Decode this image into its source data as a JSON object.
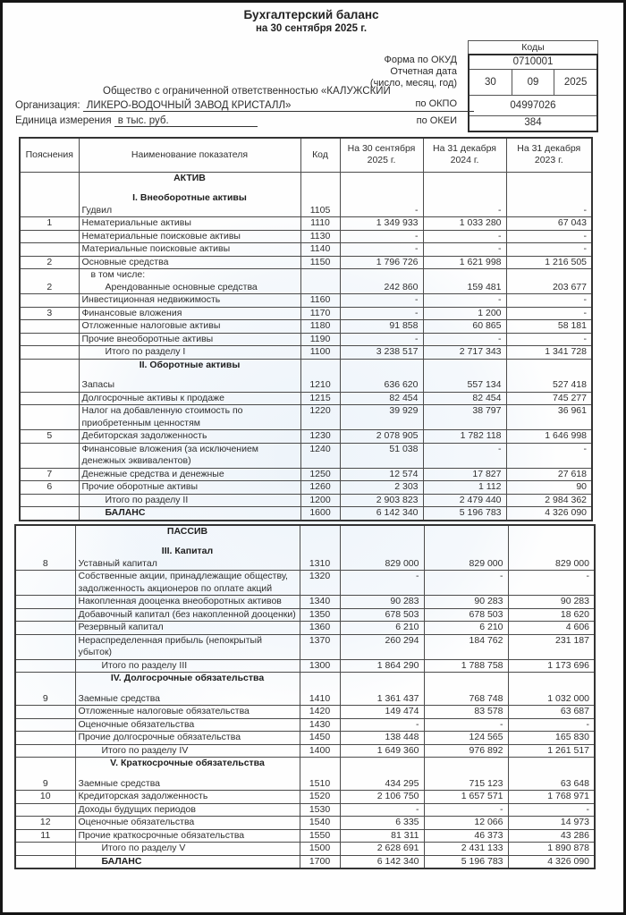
{
  "document": {
    "title": "Бухгалтерский баланс",
    "subtitle": "на 30 сентября 2025 г.",
    "organization": {
      "label": "Организация:",
      "name_line1": "Общество с ограниченной ответственностью «КАЛУЖСКИИ",
      "name_line2": "ЛИКЕРО-ВОДОЧНЫЙ ЗАВОД КРИСТАЛЛ»",
      "unit_label": "Единица измерения",
      "unit_value": "в тыс. руб."
    },
    "codes_box": {
      "header": "Коды",
      "okud_label": "Форма по ОКУД",
      "okud_value": "0710001",
      "date_label_line1": "Отчетная дата",
      "date_label_line2": "(число, месяц, год)",
      "date_day": "30",
      "date_month": "09",
      "date_year": "2025",
      "okpo_label": "по ОКПО",
      "okpo_value": "04997026",
      "okei_label": "по ОКЕИ",
      "okei_value": "384"
    }
  },
  "table_headers": [
    "Пояснения",
    "Наименование показателя",
    "Код",
    "На 30 сентября 2025 г.",
    "На 31 декабря 2024 г.",
    "На 31 декабря 2023 г."
  ],
  "assets_table": {
    "rows": [
      {
        "sections": [
          "АКТИВ",
          "",
          "I. Внеоборотные активы"
        ],
        "note": "",
        "name": "Гудвил",
        "code": "1105",
        "v1": "-",
        "v2": "-",
        "v3": "-"
      },
      {
        "note": "1",
        "name": "Нематериальные активы",
        "code": "1110",
        "v1": "1 349 933",
        "v2": "1 033 280",
        "v3": "67 043"
      },
      {
        "note": "",
        "name": "Нематериальные поисковые активы",
        "code": "1130",
        "v1": "-",
        "v2": "-",
        "v3": "-"
      },
      {
        "note": "",
        "name": "Материальные поисковые активы",
        "code": "1140",
        "v1": "-",
        "v2": "-",
        "v3": "-"
      },
      {
        "note": "2",
        "name": "Основные средства",
        "code": "1150",
        "v1": "1 796 726",
        "v2": "1 621 998",
        "v3": "1 216 505"
      },
      {
        "pre": "в том числе:",
        "note": "2",
        "name": "Арендованные основные средства",
        "code": "",
        "v1": "242 860",
        "v2": "159 481",
        "v3": "203 677",
        "indent": 1
      },
      {
        "note": "",
        "name": "Инвестиционная недвижимость",
        "code": "1160",
        "v1": "-",
        "v2": "-",
        "v3": "-"
      },
      {
        "note": "3",
        "name": "Финансовые вложения",
        "code": "1170",
        "v1": "-",
        "v2": "1 200",
        "v3": "-"
      },
      {
        "note": "",
        "name": "Отложенные налоговые активы",
        "code": "1180",
        "v1": "91 858",
        "v2": "60 865",
        "v3": "58 181"
      },
      {
        "note": "",
        "name": "Прочие внеоборотные активы",
        "code": "1190",
        "v1": "-",
        "v2": "-",
        "v3": "-"
      },
      {
        "note": "",
        "name": "Итого по разделу I",
        "code": "1100",
        "v1": "3 238 517",
        "v2": "2 717 343",
        "v3": "1 341 728",
        "indent": 1
      },
      {
        "sections": [
          "II. Оборотные активы",
          ""
        ],
        "note": "",
        "name": "Запасы",
        "code": "1210",
        "v1": "636 620",
        "v2": "557 134",
        "v3": "527 418"
      },
      {
        "note": "",
        "name": "Долгосрочные активы к продаже",
        "code": "1215",
        "v1": "82 454",
        "v2": "82 454",
        "v3": "745 277"
      },
      {
        "note": "",
        "name": "Налог на добавленную стоимость по приобретенным ценностям",
        "code": "1220",
        "v1": "39 929",
        "v2": "38 797",
        "v3": "36 961"
      },
      {
        "note": "5",
        "name": "Дебиторская задолженность",
        "code": "1230",
        "v1": "2 078 905",
        "v2": "1 782 118",
        "v3": "1 646 998"
      },
      {
        "note": "",
        "name": "Финансовые вложения (за исключением денежных эквивалентов)",
        "code": "1240",
        "v1": "51 038",
        "v2": "-",
        "v3": "-"
      },
      {
        "note": "7",
        "name": "Денежные средства и денежные",
        "code": "1250",
        "v1": "12 574",
        "v2": "17 827",
        "v3": "27 618"
      },
      {
        "note": "6",
        "name": "Прочие оборотные активы",
        "code": "1260",
        "v1": "2 303",
        "v2": "1 112",
        "v3": "90"
      },
      {
        "note": "",
        "name": "Итого по разделу II",
        "code": "1200",
        "v1": "2 903 823",
        "v2": "2 479 440",
        "v3": "2 984 362",
        "indent": 1
      },
      {
        "note": "",
        "name": "БАЛАНС",
        "code": "1600",
        "v1": "6 142 340",
        "v2": "5 196 783",
        "v3": "4 326 090",
        "bold": 1,
        "indent": 1
      }
    ]
  },
  "liabilities_table": {
    "rows": [
      {
        "sections": [
          "ПАССИВ",
          "",
          "III. Капитал"
        ],
        "note": "8",
        "name": "Уставный капитал",
        "code": "1310",
        "v1": "829 000",
        "v2": "829 000",
        "v3": "829 000"
      },
      {
        "note": "",
        "name": "Собственные акции, принадлежащие обществу, задолженность акционеров по оплате акций",
        "code": "1320",
        "v1": "-",
        "v2": "-",
        "v3": "-"
      },
      {
        "note": "",
        "name": "Накопленная дооценка внеоборотных активов",
        "code": "1340",
        "v1": "90 283",
        "v2": "90 283",
        "v3": "90 283"
      },
      {
        "note": "",
        "name": "Добавочный капитал (без накопленной дооценки)",
        "code": "1350",
        "v1": "678 503",
        "v2": "678 503",
        "v3": "18 620"
      },
      {
        "note": "",
        "name": "Резервный капитал",
        "code": "1360",
        "v1": "6 210",
        "v2": "6 210",
        "v3": "4 606"
      },
      {
        "note": "",
        "name": "Нераспределенная прибыль (непокрытый убыток)",
        "code": "1370",
        "v1": "260 294",
        "v2": "184 762",
        "v3": "231 187"
      },
      {
        "note": "",
        "name": "Итого по разделу III",
        "code": "1300",
        "v1": "1 864 290",
        "v2": "1 788 758",
        "v3": "1 173 696",
        "indent": 1
      },
      {
        "sections": [
          "IV. Долгосрочные обязательства",
          ""
        ],
        "note": "9",
        "name": "Заемные средства",
        "code": "1410",
        "v1": "1 361 437",
        "v2": "768 748",
        "v3": "1 032 000"
      },
      {
        "note": "",
        "name": "Отложенные налоговые обязательства",
        "code": "1420",
        "v1": "149 474",
        "v2": "83 578",
        "v3": "63 687"
      },
      {
        "note": "",
        "name": "Оценочные обязательства",
        "code": "1430",
        "v1": "-",
        "v2": "-",
        "v3": "-"
      },
      {
        "note": "",
        "name": "Прочие долгосрочные обязательства",
        "code": "1450",
        "v1": "138 448",
        "v2": "124 565",
        "v3": "165 830"
      },
      {
        "note": "",
        "name": "Итого по разделу IV",
        "code": "1400",
        "v1": "1 649 360",
        "v2": "976 892",
        "v3": "1 261 517",
        "indent": 1
      },
      {
        "sections": [
          "V. Краткосрочные обязательства",
          ""
        ],
        "note": "9",
        "name": "Заемные средства",
        "code": "1510",
        "v1": "434 295",
        "v2": "715 123",
        "v3": "63 648"
      },
      {
        "note": "10",
        "name": "Кредиторская задолженность",
        "code": "1520",
        "v1": "2 106 750",
        "v2": "1 657 571",
        "v3": "1 768 971"
      },
      {
        "note": "",
        "name": "Доходы будущих периодов",
        "code": "1530",
        "v1": "-",
        "v2": "-",
        "v3": "-"
      },
      {
        "note": "12",
        "name": "Оценочные обязательства",
        "code": "1540",
        "v1": "6 335",
        "v2": "12 066",
        "v3": "14 973"
      },
      {
        "note": "11",
        "name": "Прочие краткосрочные обязательства",
        "code": "1550",
        "v1": "81 311",
        "v2": "46 373",
        "v3": "43 286"
      },
      {
        "note": "",
        "name": "Итого по разделу V",
        "code": "1500",
        "v1": "2 628 691",
        "v2": "2 431 133",
        "v3": "1 890 878",
        "indent": 1
      },
      {
        "note": "",
        "name": "БАЛАНС",
        "code": "1700",
        "v1": "6 142 340",
        "v2": "5 196 783",
        "v3": "4 326 090",
        "bold": 1,
        "indent": 1
      }
    ]
  }
}
